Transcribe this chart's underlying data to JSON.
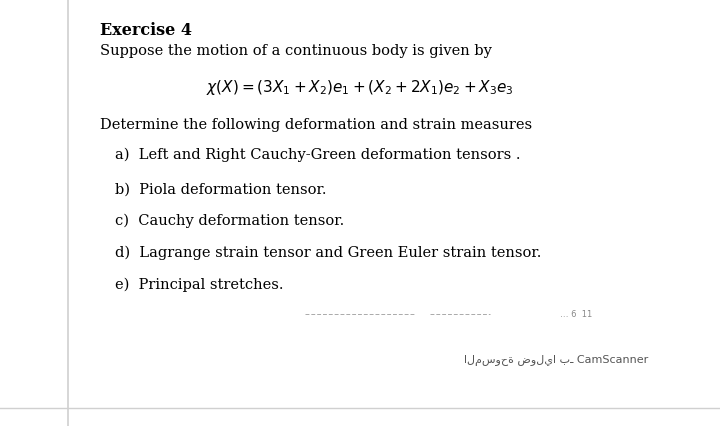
{
  "background_color": "#ffffff",
  "left_border_color": "#d0d0d0",
  "bottom_border_color": "#d0d0d0",
  "title": "Exercise 4",
  "line1": "Suppose the motion of a continuous body is given by",
  "equation": "$\\chi(X) = (3X_1 + X_2)e_1 + (X_2 + 2X_1)e_2 + X_3e_3$",
  "line2": "Determine the following deformation and strain measures",
  "items": [
    "a)  Left and Right Cauchy-Green deformation tensors .",
    "b)  Piola deformation tensor.",
    "c)  Cauchy deformation tensor.",
    "d)  Lagrange strain tensor and Green Euler strain tensor.",
    "e)  Principal stretches."
  ],
  "watermark": "المسوحة ضوليا بـ CamScanner",
  "title_fontsize": 11.5,
  "body_fontsize": 10.5,
  "eq_fontsize": 11,
  "item_fontsize": 10.5,
  "watermark_fontsize": 8
}
